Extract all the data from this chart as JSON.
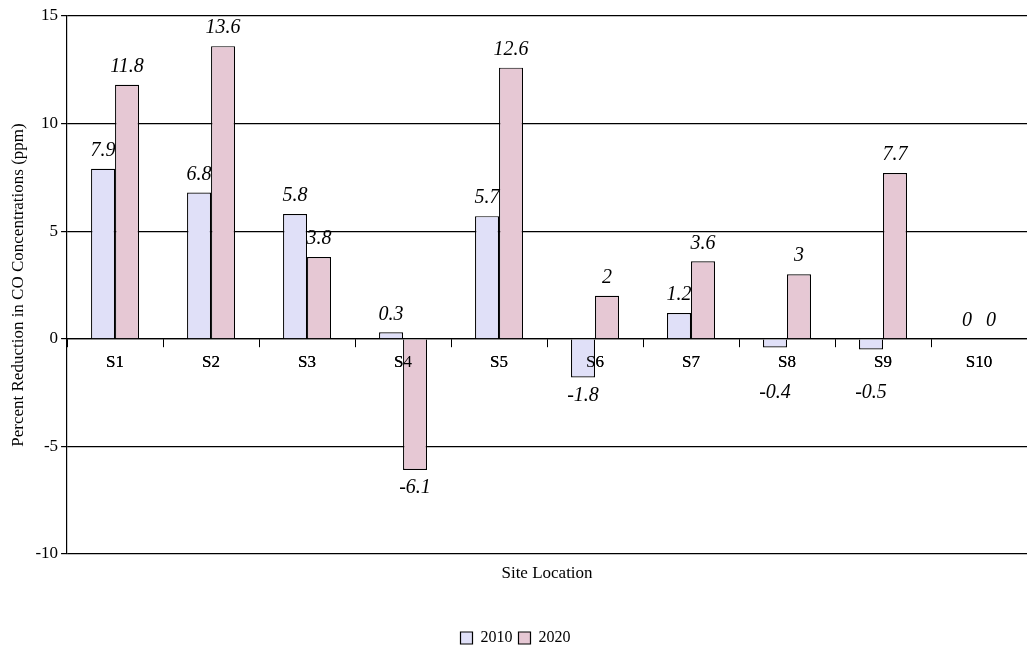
{
  "chart_data": {
    "type": "bar",
    "xlabel": "Site Location",
    "ylabel": "Percent Reduction in CO Concentrations (ppm)",
    "categories": [
      "S1",
      "S2",
      "S3",
      "S4",
      "S5",
      "S6",
      "S7",
      "S8",
      "S9",
      "S10"
    ],
    "series": [
      {
        "name": "2010",
        "color": "#e0e0f8",
        "values": [
          7.9,
          6.8,
          5.8,
          0.3,
          5.7,
          -1.8,
          1.2,
          -0.4,
          -0.5,
          0
        ]
      },
      {
        "name": "2020",
        "color": "#e6c8d4",
        "values": [
          11.8,
          13.6,
          3.8,
          -6.1,
          12.6,
          2,
          3.6,
          3,
          7.7,
          0
        ]
      }
    ],
    "ylim": [
      -10,
      15
    ],
    "yticks": [
      -10,
      -5,
      0,
      5,
      10,
      15
    ],
    "grid": "y",
    "legend": "bottom",
    "data_labels": true
  }
}
